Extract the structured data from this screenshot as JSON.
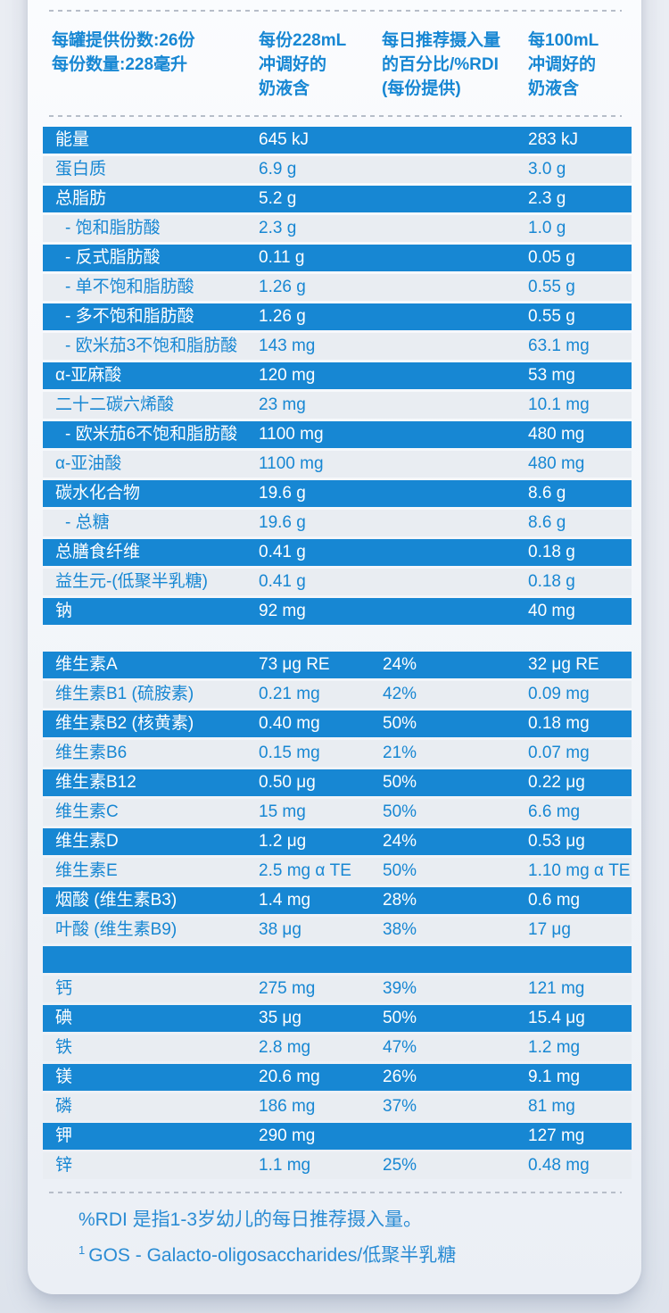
{
  "colors": {
    "accent_blue": "#1787d3",
    "row_light_bg": "#e9edf2",
    "page_bg": "#e6eaf1",
    "footnote_blue": "#2a8cd4"
  },
  "serving_info": {
    "line1": "每罐提供份数:26份",
    "line2": "每份数量:228毫升"
  },
  "columns": {
    "per_serving": [
      "每份228mL",
      "冲调好的",
      "奶液含"
    ],
    "rdi": [
      "每日推荐摄入量",
      "的百分比/%RDI",
      "(每份提供)"
    ],
    "per_100ml": [
      "每100mL",
      "冲调好的",
      "奶液含"
    ]
  },
  "table": {
    "rows": [
      {
        "name": "能量",
        "indent": false,
        "per_serving": "645 kJ",
        "rdi": "",
        "per_100ml": "283 kJ",
        "variant": "blue"
      },
      {
        "name": "蛋白质",
        "indent": false,
        "per_serving": "6.9 g",
        "rdi": "",
        "per_100ml": "3.0 g",
        "variant": "light"
      },
      {
        "name": "总脂肪",
        "indent": false,
        "per_serving": "5.2 g",
        "rdi": "",
        "per_100ml": "2.3 g",
        "variant": "blue"
      },
      {
        "name": "- 饱和脂肪酸",
        "indent": true,
        "per_serving": "2.3 g",
        "rdi": "",
        "per_100ml": "1.0 g",
        "variant": "light"
      },
      {
        "name": "- 反式脂肪酸",
        "indent": true,
        "per_serving": "0.11 g",
        "rdi": "",
        "per_100ml": "0.05 g",
        "variant": "blue"
      },
      {
        "name": "- 单不饱和脂肪酸",
        "indent": true,
        "per_serving": "1.26 g",
        "rdi": "",
        "per_100ml": "0.55 g",
        "variant": "light"
      },
      {
        "name": "- 多不饱和脂肪酸",
        "indent": true,
        "per_serving": "1.26 g",
        "rdi": "",
        "per_100ml": "0.55 g",
        "variant": "blue"
      },
      {
        "name": "- 欧米茄3不饱和脂肪酸",
        "indent": true,
        "per_serving": "143 mg",
        "rdi": "",
        "per_100ml": "63.1 mg",
        "variant": "light"
      },
      {
        "name": "α-亚麻酸",
        "indent": false,
        "per_serving": "120 mg",
        "rdi": "",
        "per_100ml": "53 mg",
        "variant": "blue"
      },
      {
        "name": "二十二碳六烯酸",
        "indent": false,
        "per_serving": "23 mg",
        "rdi": "",
        "per_100ml": "10.1 mg",
        "variant": "light"
      },
      {
        "name": "- 欧米茄6不饱和脂肪酸",
        "indent": true,
        "per_serving": "1100 mg",
        "rdi": "",
        "per_100ml": "480 mg",
        "variant": "blue"
      },
      {
        "name": "α-亚油酸",
        "indent": false,
        "per_serving": "1100 mg",
        "rdi": "",
        "per_100ml": "480 mg",
        "variant": "light"
      },
      {
        "name": "碳水化合物",
        "indent": false,
        "per_serving": "19.6 g",
        "rdi": "",
        "per_100ml": "8.6 g",
        "variant": "blue"
      },
      {
        "name": "- 总糖",
        "indent": true,
        "per_serving": "19.6 g",
        "rdi": "",
        "per_100ml": "8.6 g",
        "variant": "light"
      },
      {
        "name": "总膳食纤维",
        "indent": false,
        "per_serving": "0.41 g",
        "rdi": "",
        "per_100ml": "0.18 g",
        "variant": "blue"
      },
      {
        "name": "益生元-(低聚半乳糖)",
        "indent": false,
        "per_serving": "0.41 g",
        "rdi": "",
        "per_100ml": "0.18 g",
        "variant": "light"
      },
      {
        "name": "钠",
        "indent": false,
        "per_serving": "92 mg",
        "rdi": "",
        "per_100ml": "40 mg",
        "variant": "blue"
      },
      {
        "name": "维生素A",
        "indent": false,
        "per_serving": "73 μg RE",
        "rdi": "24%",
        "per_100ml": "32 μg RE",
        "variant": "blue",
        "gap_before": true
      },
      {
        "name": "维生素B1 (硫胺素)",
        "indent": false,
        "per_serving": "0.21 mg",
        "rdi": "42%",
        "per_100ml": "0.09 mg",
        "variant": "light"
      },
      {
        "name": "维生素B2 (核黄素)",
        "indent": false,
        "per_serving": "0.40 mg",
        "rdi": "50%",
        "per_100ml": "0.18 mg",
        "variant": "blue"
      },
      {
        "name": "维生素B6",
        "indent": false,
        "per_serving": "0.15 mg",
        "rdi": "21%",
        "per_100ml": "0.07 mg",
        "variant": "light"
      },
      {
        "name": "维生素B12",
        "indent": false,
        "per_serving": "0.50 μg",
        "rdi": "50%",
        "per_100ml": "0.22 μg",
        "variant": "blue"
      },
      {
        "name": "维生素C",
        "indent": false,
        "per_serving": "15 mg",
        "rdi": "50%",
        "per_100ml": "6.6 mg",
        "variant": "light"
      },
      {
        "name": "维生素D",
        "indent": false,
        "per_serving": "1.2 μg",
        "rdi": "24%",
        "per_100ml": "0.53 μg",
        "variant": "blue"
      },
      {
        "name": "维生素E",
        "indent": false,
        "per_serving": "2.5 mg α TE",
        "rdi": "50%",
        "per_100ml": "1.10 mg α TE",
        "variant": "light"
      },
      {
        "name": "烟酸 (维生素B3)",
        "indent": false,
        "per_serving": "1.4 mg",
        "rdi": "28%",
        "per_100ml": "0.6 mg",
        "variant": "blue"
      },
      {
        "name": "叶酸 (维生素B9)",
        "indent": false,
        "per_serving": "38 μg",
        "rdi": "38%",
        "per_100ml": "17 μg",
        "variant": "light"
      },
      {
        "name": "",
        "separator": true,
        "per_serving": "",
        "rdi": "",
        "per_100ml": "",
        "variant": "blue"
      },
      {
        "name": "钙",
        "indent": false,
        "per_serving": "275 mg",
        "rdi": "39%",
        "per_100ml": "121 mg",
        "variant": "light"
      },
      {
        "name": "碘",
        "indent": false,
        "per_serving": "35 μg",
        "rdi": "50%",
        "per_100ml": "15.4 μg",
        "variant": "blue"
      },
      {
        "name": "铁",
        "indent": false,
        "per_serving": "2.8 mg",
        "rdi": "47%",
        "per_100ml": "1.2 mg",
        "variant": "light"
      },
      {
        "name": "镁",
        "indent": false,
        "per_serving": "20.6 mg",
        "rdi": "26%",
        "per_100ml": "9.1 mg",
        "variant": "blue"
      },
      {
        "name": "磷",
        "indent": false,
        "per_serving": "186 mg",
        "rdi": "37%",
        "per_100ml": "81 mg",
        "variant": "light"
      },
      {
        "name": "钾",
        "indent": false,
        "per_serving": "290 mg",
        "rdi": "",
        "per_100ml": "127 mg",
        "variant": "blue"
      },
      {
        "name": "锌",
        "indent": false,
        "per_serving": "1.1 mg",
        "rdi": "25%",
        "per_100ml": "0.48 mg",
        "variant": "light"
      }
    ]
  },
  "footnotes": {
    "rdi_note": "%RDI 是指1-3岁幼儿的每日推荐摄入量。",
    "gos_sup": "1",
    "gos_note": "GOS - Galacto-oligosaccharides/低聚半乳糖"
  }
}
